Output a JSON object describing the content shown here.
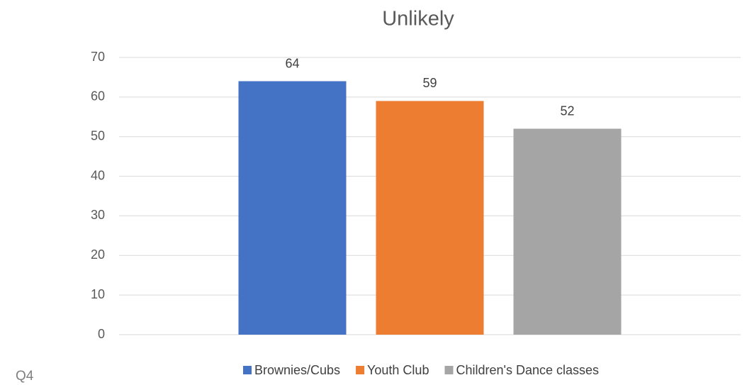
{
  "chart_data": {
    "type": "bar",
    "title": "Unlikely",
    "annotation": "Q4",
    "categories": [
      null
    ],
    "series": [
      {
        "name": "Brownies/Cubs",
        "color": "#4472c4",
        "values": [
          64
        ]
      },
      {
        "name": "Youth Club",
        "color": "#ed7d31",
        "values": [
          59
        ]
      },
      {
        "name": "Children's Dance classes",
        "color": "#a5a5a5",
        "values": [
          52
        ]
      }
    ],
    "ylim": [
      0,
      70
    ],
    "yticks": [
      0,
      10,
      20,
      30,
      40,
      50,
      60,
      70
    ],
    "grid": true,
    "data_labels": true,
    "legend": "bottom"
  }
}
